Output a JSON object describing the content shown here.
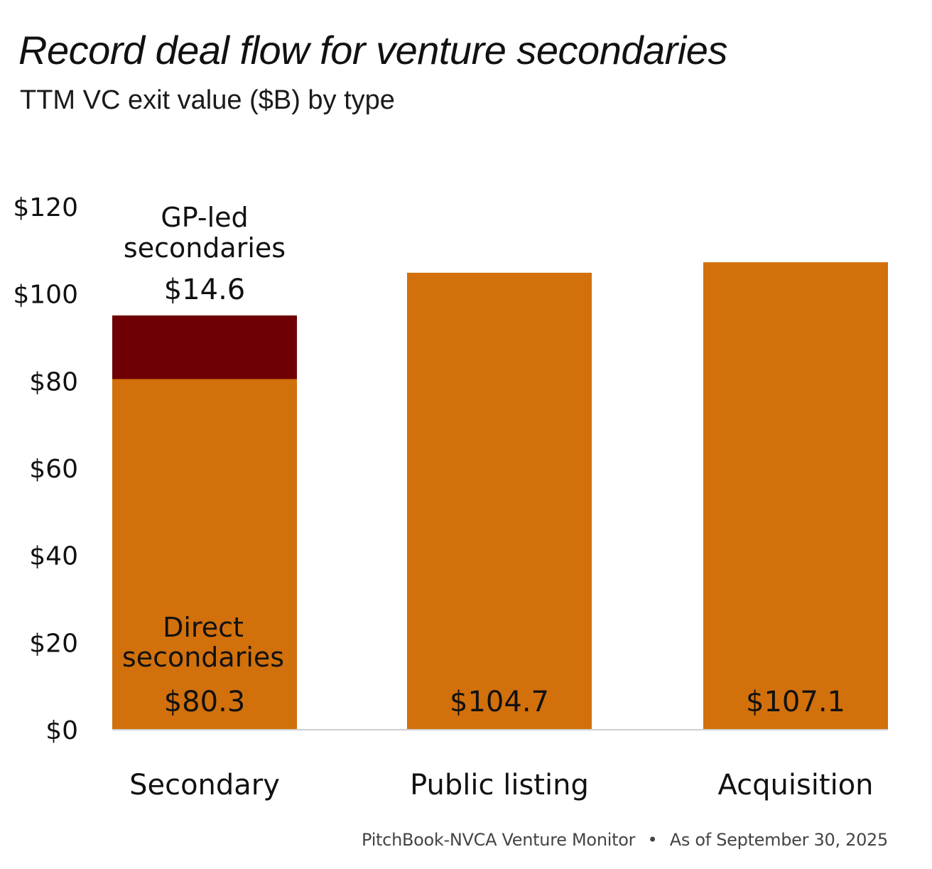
{
  "chart_data": {
    "type": "bar",
    "stacked": true,
    "title": "Record deal flow for venture secondaries",
    "subtitle": "TTM VC exit value ($B) by type",
    "categories": [
      "Secondary",
      "Public listing",
      "Acquisition"
    ],
    "series": [
      {
        "name": "Direct secondaries",
        "color": "#d2700c",
        "values": [
          80.3,
          104.7,
          107.1
        ],
        "labels": [
          "$80.3",
          "$104.7",
          "$107.1"
        ]
      },
      {
        "name": "GP-led secondaries",
        "color": "#6e0005",
        "values": [
          14.6,
          0,
          0
        ],
        "labels": [
          "$14.6",
          "",
          ""
        ]
      }
    ],
    "annotations": {
      "direct_secondaries": [
        "Direct",
        "secondaries"
      ],
      "gp_led": [
        "GP-led",
        "secondaries"
      ]
    },
    "ylim": [
      0,
      120
    ],
    "y_ticks": [
      0,
      20,
      40,
      60,
      80,
      100,
      120
    ],
    "y_tick_labels": [
      "$0",
      "$20",
      "$40",
      "$60",
      "$80",
      "$100",
      "$120"
    ],
    "xlabel": "",
    "ylabel": "",
    "grid": false,
    "legend": "none"
  },
  "source": {
    "publisher": "PitchBook-NVCA Venture Monitor",
    "separator": "•",
    "as_of": "As of September 30, 2025"
  }
}
